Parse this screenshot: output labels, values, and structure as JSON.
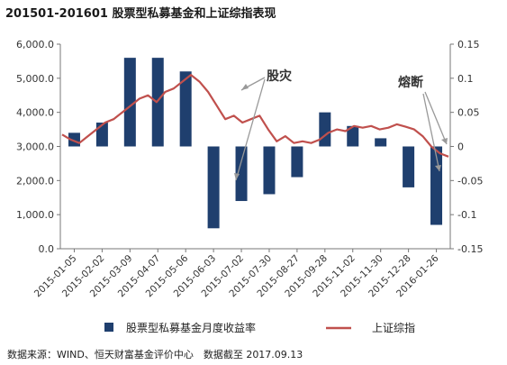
{
  "title": "201501-201601 股票型私募基金和上证综指表现",
  "source": "数据来源：WIND、恒天财富基金评价中心　数据截至 2017.09.13",
  "chart_data": {
    "type": "bar+line",
    "categories": [
      "2015-01-05",
      "2015-02-02",
      "2015-03-09",
      "2015-04-07",
      "2015-05-06",
      "2015-06-03",
      "2015-07-02",
      "2015-07-30",
      "2015-08-27",
      "2015-09-28",
      "2015-11-02",
      "2015-11-30",
      "2015-12-28",
      "2016-01-26"
    ],
    "y_left": {
      "range": [
        0,
        6000
      ],
      "ticks": [
        "0.0",
        "1,000.0",
        "2,000.0",
        "3,000.0",
        "4,000.0",
        "5,000.0",
        "6,000.0"
      ]
    },
    "y_right": {
      "range": [
        -0.15,
        0.15
      ],
      "ticks": [
        "0.15",
        "0.1",
        "0.05",
        "0",
        "-0.05",
        "-0.1",
        "-0.15"
      ]
    },
    "bar_series": {
      "name": "股票型私募基金月度收益率",
      "color": "#1f3f6e",
      "values": [
        0.02,
        0.035,
        0.13,
        0.13,
        0.11,
        -0.12,
        -0.08,
        -0.07,
        -0.045,
        0.05,
        0.03,
        0.012,
        -0.06,
        -0.115
      ]
    },
    "line_series": {
      "name": "上证综指",
      "color": "#c0504d",
      "values": [
        3350,
        3200,
        3100,
        3300,
        3500,
        3700,
        3800,
        4000,
        4200,
        4400,
        4500,
        4300,
        4600,
        4700,
        4900,
        5100,
        4900,
        4600,
        4200,
        3800,
        3900,
        3700,
        3800,
        3900,
        3500,
        3150,
        3300,
        3100,
        3150,
        3100,
        3200,
        3400,
        3500,
        3450,
        3600,
        3550,
        3600,
        3500,
        3550,
        3650,
        3580,
        3500,
        3300,
        3000,
        2800,
        2700
      ]
    },
    "annotations": [
      {
        "text": "股灾"
      },
      {
        "text": "熔断"
      }
    ],
    "legend_position": "bottom",
    "grid": false
  }
}
